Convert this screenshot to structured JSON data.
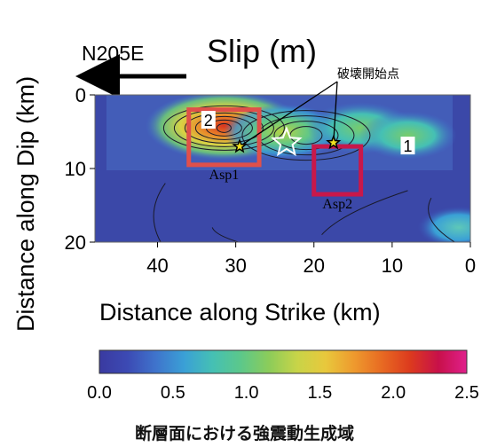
{
  "chart_data": {
    "type": "heatmap",
    "title": "Slip (m)",
    "direction_label": "N205E",
    "xlabel": "Distance along Strike (km)",
    "ylabel": "Distance along Dip (km)",
    "x_ticks": [
      "40",
      "30",
      "20",
      "10",
      "0"
    ],
    "x_tick_values": [
      40,
      30,
      20,
      10,
      0
    ],
    "xlim": [
      48,
      0
    ],
    "y_ticks": [
      "0",
      "10",
      "20"
    ],
    "y_tick_values": [
      0,
      10,
      20
    ],
    "ylim": [
      0,
      20
    ],
    "colorbar": {
      "ticks": [
        "0.0",
        "0.5",
        "1.0",
        "1.5",
        "2.0",
        "2.5"
      ],
      "tick_values": [
        0.0,
        0.5,
        1.0,
        1.5,
        2.0,
        2.5
      ],
      "range": [
        0.0,
        2.5
      ],
      "colors": [
        "#3a3aa0",
        "#3c4ab4",
        "#3f74cc",
        "#3aa0d6",
        "#45c0b4",
        "#5cc88a",
        "#8ccc5a",
        "#c8d448",
        "#e8c83c",
        "#ee9a2e",
        "#e86a22",
        "#dc3a1e",
        "#c8104a",
        "#e0208c"
      ]
    },
    "slip_patches": [
      {
        "name": "asperity-2-peak",
        "strike_km": 31.5,
        "dip_km": 4.2,
        "slip_m": 2.1
      },
      {
        "name": "central-high",
        "strike_km": 24,
        "dip_km": 5,
        "slip_m": 1.3
      },
      {
        "name": "asperity-1-peak",
        "strike_km": 14,
        "dip_km": 4.5,
        "slip_m": 1.1
      },
      {
        "name": "right-lobe",
        "strike_km": 8,
        "dip_km": 5.5,
        "slip_m": 0.9
      },
      {
        "name": "bottom-right-patch",
        "strike_km": 1.5,
        "dip_km": 18,
        "slip_m": 0.6
      }
    ],
    "labels": [
      {
        "text": "2",
        "strike_km": 33.5,
        "dip_km": 3.5
      },
      {
        "text": "1",
        "strike_km": 8,
        "dip_km": 7
      }
    ],
    "asperities": [
      {
        "label": "Asp1",
        "strike_from": 36,
        "strike_to": 27,
        "dip_from": 2,
        "dip_to": 9.5
      },
      {
        "label": "Asp2",
        "strike_from": 20,
        "strike_to": 14,
        "dip_from": 7,
        "dip_to": 13.5
      }
    ],
    "hypocenters": [
      {
        "strike_km": 29.5,
        "dip_km": 7
      },
      {
        "strike_km": 17.5,
        "dip_km": 6.5
      }
    ],
    "main_hypocenter": {
      "strike_km": 23.5,
      "dip_km": 6.5
    },
    "annotation": "破壊開始点",
    "caption": "断層面における強震動生成域",
    "grid": false
  }
}
